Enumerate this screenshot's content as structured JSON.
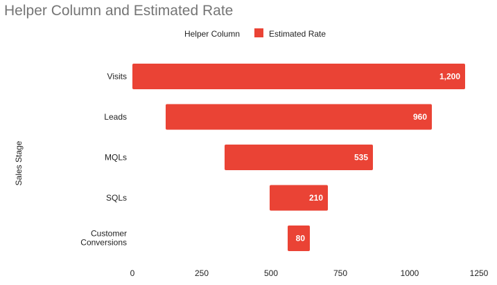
{
  "chart_data": {
    "type": "bar",
    "orientation": "horizontal",
    "stacked": true,
    "title": "Helper Column and Estimated Rate",
    "ylabel": "Sales Stage",
    "xlabel": "",
    "xlim": [
      0,
      1250
    ],
    "x_ticks": [
      0,
      250,
      500,
      750,
      1000,
      1250
    ],
    "grid": false,
    "legend_position": "top",
    "categories": [
      "Visits",
      "Leads",
      "MQLs",
      "SQLs",
      "Customer Conversions"
    ],
    "series": [
      {
        "name": "Helper Column",
        "values": [
          0,
          120,
          332.5,
          495,
          560
        ],
        "color": "transparent"
      },
      {
        "name": "Estimated Rate",
        "values": [
          1200,
          960,
          535,
          210,
          80
        ],
        "color": "#EA4335"
      }
    ],
    "data_labels": [
      "1,200",
      "960",
      "535",
      "210",
      "80"
    ]
  }
}
